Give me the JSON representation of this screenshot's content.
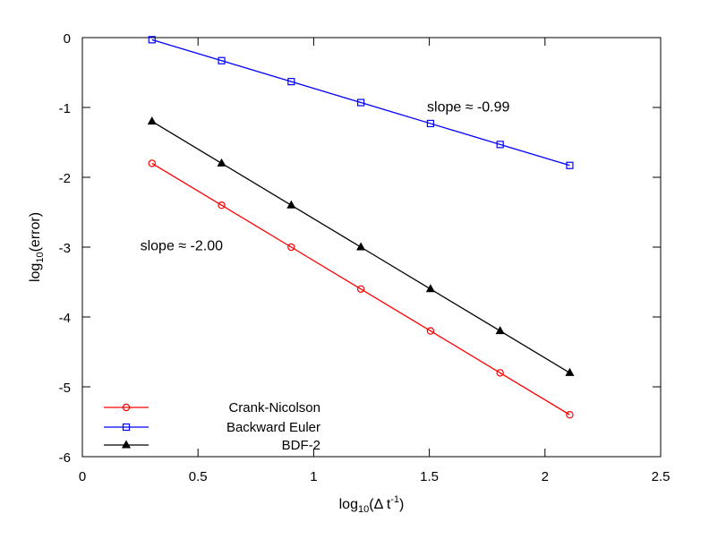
{
  "chart_data": {
    "type": "line",
    "title": "",
    "xlabel": {
      "base": "log",
      "sub": "10",
      "open": "(Δ t",
      "sup": "-1",
      "close": ")"
    },
    "ylabel": {
      "base": "log",
      "sub": "10",
      "rest": "(error)"
    },
    "xlim": [
      0,
      2.5
    ],
    "ylim": [
      -6,
      0
    ],
    "xticks": [
      0,
      0.5,
      1,
      1.5,
      2,
      2.5
    ],
    "xtick_labels": [
      "0",
      "0.5",
      "1",
      "1.5",
      "2",
      "2.5"
    ],
    "yticks": [
      0,
      -1,
      -2,
      -3,
      -4,
      -5,
      -6
    ],
    "ytick_labels": [
      "0",
      "-1",
      "-2",
      "-3",
      "-4",
      "-5",
      "-6"
    ],
    "grid": false,
    "legend_position": "bottom-left",
    "series": [
      {
        "name": "Crank-Nicolson",
        "color": "#ff0000",
        "marker": "circle",
        "x": [
          0.301,
          0.602,
          0.903,
          1.204,
          1.505,
          1.806,
          2.107
        ],
        "y": [
          -1.8,
          -2.4,
          -3.0,
          -3.6,
          -4.2,
          -4.8,
          -5.4
        ]
      },
      {
        "name": "Backward Euler",
        "color": "#0000ff",
        "marker": "square",
        "x": [
          0.301,
          0.602,
          0.903,
          1.204,
          1.505,
          1.806,
          2.107
        ],
        "y": [
          -0.03,
          -0.33,
          -0.63,
          -0.93,
          -1.23,
          -1.53,
          -1.83
        ]
      },
      {
        "name": "BDF-2",
        "color": "#000000",
        "marker": "triangle",
        "x": [
          0.301,
          0.602,
          0.903,
          1.204,
          1.505,
          1.806,
          2.107
        ],
        "y": [
          -1.2,
          -1.8,
          -2.4,
          -3.0,
          -3.6,
          -4.2,
          -4.8
        ]
      }
    ],
    "annotations": [
      {
        "text": "slope ≈ -0.99",
        "x": 1.49,
        "y": -0.98
      },
      {
        "text": "slope ≈ -2.00",
        "x": 0.25,
        "y": -2.97
      }
    ]
  }
}
